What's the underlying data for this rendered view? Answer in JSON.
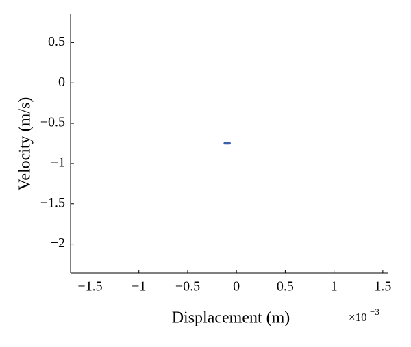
{
  "chart_data": {
    "type": "line",
    "xlabel": "Displacement (m)",
    "ylabel": "Velocity (m/s)",
    "x_multiplier": "×10",
    "x_multiplier_exp": "−3",
    "x": [
      -0.12,
      -0.07
    ],
    "series": [
      {
        "color": "#3a5fad",
        "values": [
          -0.75,
          -0.75
        ]
      }
    ],
    "xlim": [
      -1.7,
      1.55
    ],
    "ylim": [
      -2.36,
      0.86
    ],
    "xticks": [
      {
        "value": -1.5,
        "label": "−1.5"
      },
      {
        "value": -1,
        "label": "−1"
      },
      {
        "value": -0.5,
        "label": "−0.5"
      },
      0,
      0.5,
      1,
      1.5
    ],
    "yticks": [
      0.5,
      0,
      {
        "value": -0.5,
        "label": "−0.5"
      },
      {
        "value": -1,
        "label": "−1"
      },
      {
        "value": -1.5,
        "label": "−1.5"
      },
      {
        "value": -2,
        "label": "−2"
      }
    ],
    "grid": false
  }
}
